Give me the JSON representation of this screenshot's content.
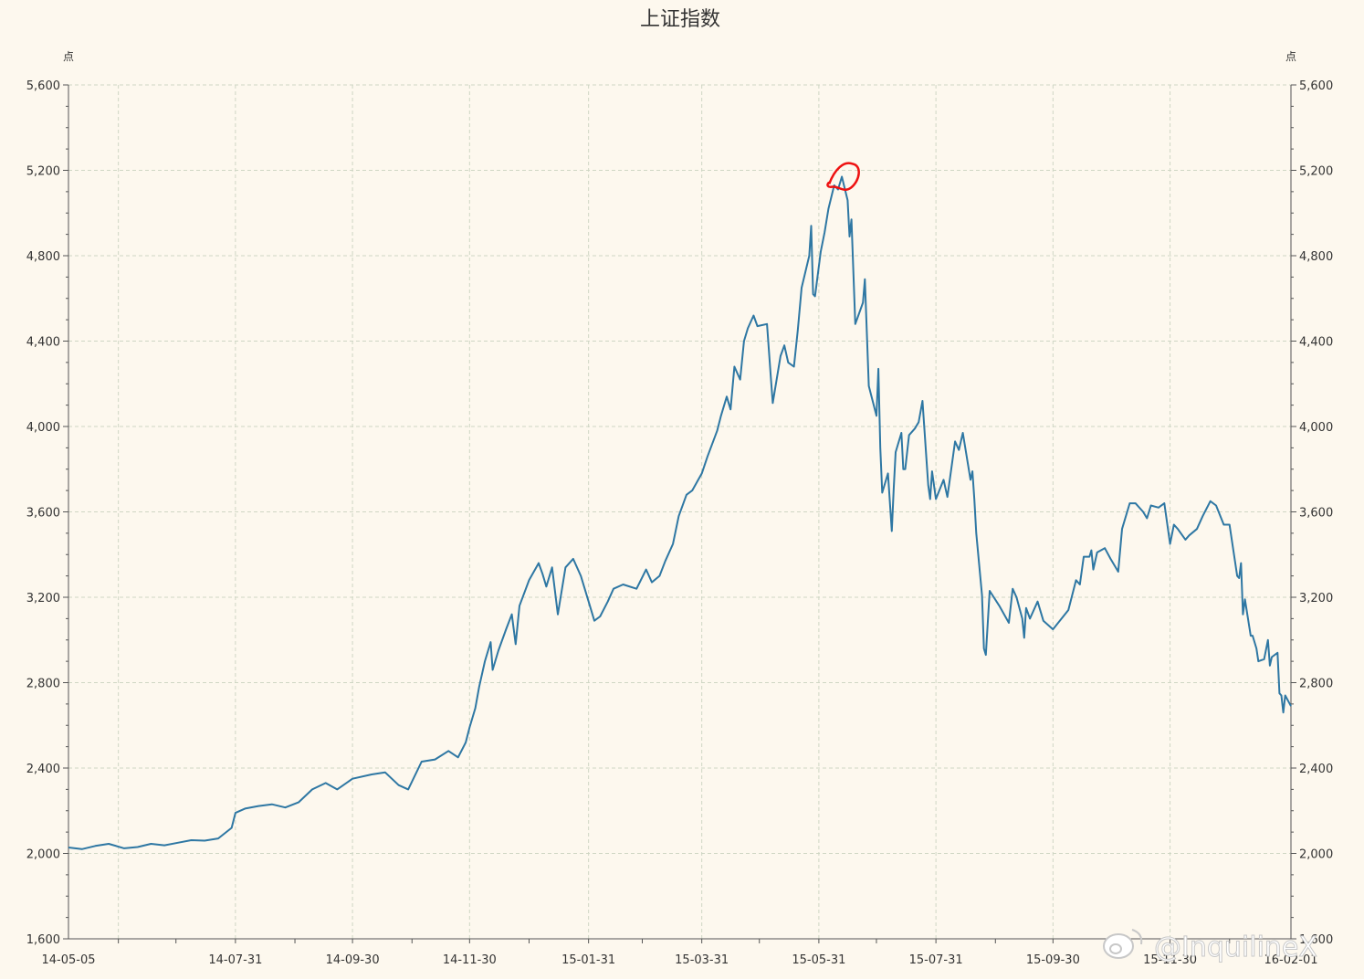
{
  "chart_data": {
    "type": "line",
    "title": "上证指数",
    "ylabel_left": "点",
    "ylabel_right": "点",
    "ylim": [
      1600,
      5600
    ],
    "yticks": [
      1600,
      2000,
      2400,
      2800,
      3200,
      3600,
      4000,
      4400,
      4800,
      5200,
      5600
    ],
    "ytick_labels": [
      "1,600",
      "2,000",
      "2,400",
      "2,800",
      "3,200",
      "3,600",
      "4,000",
      "4,400",
      "4,800",
      "5,200",
      "5,600"
    ],
    "xlim": [
      "2014-05-05",
      "2016-02-01"
    ],
    "xticks": [
      "2014-05-05",
      "2014-07-31",
      "2014-09-30",
      "2014-11-30",
      "2015-01-31",
      "2015-03-31",
      "2015-05-31",
      "2015-07-31",
      "2015-09-30",
      "2015-11-30",
      "2016-02-01"
    ],
    "xtick_labels": [
      "14-05-05",
      "14-07-31",
      "14-09-30",
      "14-11-30",
      "15-01-31",
      "15-03-31",
      "15-05-31",
      "15-07-31",
      "15-09-30",
      "15-11-30",
      "16-02-01"
    ],
    "grid": true,
    "series": [
      {
        "color": "#2e77a3",
        "points": [
          [
            "2014-05-05",
            2028
          ],
          [
            "2014-05-12",
            2020
          ],
          [
            "2014-05-19",
            2035
          ],
          [
            "2014-05-26",
            2045
          ],
          [
            "2014-06-03",
            2024
          ],
          [
            "2014-06-10",
            2030
          ],
          [
            "2014-06-17",
            2045
          ],
          [
            "2014-06-24",
            2038
          ],
          [
            "2014-07-01",
            2050
          ],
          [
            "2014-07-08",
            2062
          ],
          [
            "2014-07-15",
            2060
          ],
          [
            "2014-07-22",
            2070
          ],
          [
            "2014-07-29",
            2120
          ],
          [
            "2014-07-31",
            2190
          ],
          [
            "2014-08-05",
            2210
          ],
          [
            "2014-08-12",
            2222
          ],
          [
            "2014-08-19",
            2230
          ],
          [
            "2014-08-26",
            2215
          ],
          [
            "2014-09-02",
            2240
          ],
          [
            "2014-09-09",
            2300
          ],
          [
            "2014-09-16",
            2330
          ],
          [
            "2014-09-22",
            2300
          ],
          [
            "2014-09-30",
            2350
          ],
          [
            "2014-10-10",
            2370
          ],
          [
            "2014-10-17",
            2380
          ],
          [
            "2014-10-24",
            2320
          ],
          [
            "2014-10-29",
            2300
          ],
          [
            "2014-11-05",
            2430
          ],
          [
            "2014-11-12",
            2440
          ],
          [
            "2014-11-19",
            2480
          ],
          [
            "2014-11-24",
            2450
          ],
          [
            "2014-11-28",
            2520
          ],
          [
            "2014-11-30",
            2590
          ],
          [
            "2014-12-03",
            2680
          ],
          [
            "2014-12-05",
            2780
          ],
          [
            "2014-12-08",
            2900
          ],
          [
            "2014-12-11",
            2990
          ],
          [
            "2014-12-12",
            2860
          ],
          [
            "2014-12-15",
            2950
          ],
          [
            "2014-12-19",
            3050
          ],
          [
            "2014-12-22",
            3120
          ],
          [
            "2014-12-24",
            2980
          ],
          [
            "2014-12-26",
            3160
          ],
          [
            "2014-12-31",
            3280
          ],
          [
            "2015-01-05",
            3360
          ],
          [
            "2015-01-07",
            3310
          ],
          [
            "2015-01-09",
            3250
          ],
          [
            "2015-01-12",
            3340
          ],
          [
            "2015-01-15",
            3120
          ],
          [
            "2015-01-19",
            3340
          ],
          [
            "2015-01-23",
            3380
          ],
          [
            "2015-01-27",
            3300
          ],
          [
            "2015-01-31",
            3180
          ],
          [
            "2015-02-03",
            3090
          ],
          [
            "2015-02-06",
            3110
          ],
          [
            "2015-02-10",
            3180
          ],
          [
            "2015-02-13",
            3240
          ],
          [
            "2015-02-18",
            3260
          ],
          [
            "2015-02-25",
            3240
          ],
          [
            "2015-03-02",
            3330
          ],
          [
            "2015-03-05",
            3270
          ],
          [
            "2015-03-09",
            3300
          ],
          [
            "2015-03-12",
            3370
          ],
          [
            "2015-03-16",
            3450
          ],
          [
            "2015-03-19",
            3580
          ],
          [
            "2015-03-23",
            3680
          ],
          [
            "2015-03-26",
            3700
          ],
          [
            "2015-03-31",
            3780
          ],
          [
            "2015-04-03",
            3860
          ],
          [
            "2015-04-08",
            3980
          ],
          [
            "2015-04-10",
            4050
          ],
          [
            "2015-04-13",
            4140
          ],
          [
            "2015-04-15",
            4080
          ],
          [
            "2015-04-17",
            4280
          ],
          [
            "2015-04-20",
            4220
          ],
          [
            "2015-04-22",
            4400
          ],
          [
            "2015-04-24",
            4460
          ],
          [
            "2015-04-27",
            4520
          ],
          [
            "2015-04-29",
            4470
          ],
          [
            "2015-05-04",
            4480
          ],
          [
            "2015-05-06",
            4230
          ],
          [
            "2015-05-07",
            4110
          ],
          [
            "2015-05-11",
            4330
          ],
          [
            "2015-05-13",
            4380
          ],
          [
            "2015-05-15",
            4300
          ],
          [
            "2015-05-18",
            4280
          ],
          [
            "2015-05-20",
            4450
          ],
          [
            "2015-05-22",
            4650
          ],
          [
            "2015-05-26",
            4800
          ],
          [
            "2015-05-27",
            4940
          ],
          [
            "2015-05-28",
            4620
          ],
          [
            "2015-05-29",
            4610
          ],
          [
            "2015-06-01",
            4820
          ],
          [
            "2015-06-03",
            4910
          ],
          [
            "2015-06-05",
            5020
          ],
          [
            "2015-06-08",
            5130
          ],
          [
            "2015-06-10",
            5110
          ],
          [
            "2015-06-12",
            5170
          ],
          [
            "2015-06-15",
            5060
          ],
          [
            "2015-06-16",
            4890
          ],
          [
            "2015-06-17",
            4970
          ],
          [
            "2015-06-19",
            4480
          ],
          [
            "2015-06-23",
            4580
          ],
          [
            "2015-06-24",
            4690
          ],
          [
            "2015-06-26",
            4190
          ],
          [
            "2015-06-30",
            4050
          ],
          [
            "2015-07-01",
            4270
          ],
          [
            "2015-07-02",
            3900
          ],
          [
            "2015-07-03",
            3690
          ],
          [
            "2015-07-06",
            3780
          ],
          [
            "2015-07-08",
            3510
          ],
          [
            "2015-07-09",
            3710
          ],
          [
            "2015-07-10",
            3880
          ],
          [
            "2015-07-13",
            3970
          ],
          [
            "2015-07-14",
            3800
          ],
          [
            "2015-07-15",
            3800
          ],
          [
            "2015-07-17",
            3960
          ],
          [
            "2015-07-20",
            3990
          ],
          [
            "2015-07-22",
            4020
          ],
          [
            "2015-07-24",
            4120
          ],
          [
            "2015-07-27",
            3725
          ],
          [
            "2015-07-28",
            3660
          ],
          [
            "2015-07-29",
            3790
          ],
          [
            "2015-07-31",
            3660
          ],
          [
            "2015-08-04",
            3750
          ],
          [
            "2015-08-06",
            3670
          ],
          [
            "2015-08-10",
            3930
          ],
          [
            "2015-08-12",
            3890
          ],
          [
            "2015-08-14",
            3970
          ],
          [
            "2015-08-18",
            3750
          ],
          [
            "2015-08-19",
            3790
          ],
          [
            "2015-08-20",
            3660
          ],
          [
            "2015-08-21",
            3500
          ],
          [
            "2015-08-24",
            3210
          ],
          [
            "2015-08-25",
            2960
          ],
          [
            "2015-08-26",
            2930
          ],
          [
            "2015-08-28",
            3230
          ],
          [
            "2015-09-02",
            3160
          ],
          [
            "2015-09-07",
            3080
          ],
          [
            "2015-09-09",
            3240
          ],
          [
            "2015-09-11",
            3200
          ],
          [
            "2015-09-14",
            3100
          ],
          [
            "2015-09-15",
            3010
          ],
          [
            "2015-09-16",
            3150
          ],
          [
            "2015-09-18",
            3100
          ],
          [
            "2015-09-22",
            3180
          ],
          [
            "2015-09-25",
            3090
          ],
          [
            "2015-09-30",
            3050
          ],
          [
            "2015-10-08",
            3140
          ],
          [
            "2015-10-12",
            3280
          ],
          [
            "2015-10-14",
            3260
          ],
          [
            "2015-10-16",
            3390
          ],
          [
            "2015-10-19",
            3390
          ],
          [
            "2015-10-20",
            3420
          ],
          [
            "2015-10-21",
            3330
          ],
          [
            "2015-10-23",
            3410
          ],
          [
            "2015-10-27",
            3430
          ],
          [
            "2015-10-30",
            3380
          ],
          [
            "2015-11-03",
            3320
          ],
          [
            "2015-11-05",
            3520
          ],
          [
            "2015-11-09",
            3640
          ],
          [
            "2015-11-12",
            3640
          ],
          [
            "2015-11-16",
            3600
          ],
          [
            "2015-11-18",
            3570
          ],
          [
            "2015-11-20",
            3630
          ],
          [
            "2015-11-24",
            3620
          ],
          [
            "2015-11-27",
            3640
          ],
          [
            "2015-11-30",
            3450
          ],
          [
            "2015-12-02",
            3540
          ],
          [
            "2015-12-04",
            3520
          ],
          [
            "2015-12-08",
            3470
          ],
          [
            "2015-12-10",
            3490
          ],
          [
            "2015-12-14",
            3520
          ],
          [
            "2015-12-17",
            3580
          ],
          [
            "2015-12-21",
            3650
          ],
          [
            "2015-12-24",
            3630
          ],
          [
            "2015-12-28",
            3540
          ],
          [
            "2015-12-31",
            3540
          ],
          [
            "2016-01-04",
            3300
          ],
          [
            "2016-01-05",
            3290
          ],
          [
            "2016-01-06",
            3360
          ],
          [
            "2016-01-07",
            3120
          ],
          [
            "2016-01-08",
            3190
          ],
          [
            "2016-01-11",
            3020
          ],
          [
            "2016-01-12",
            3020
          ],
          [
            "2016-01-14",
            2960
          ],
          [
            "2016-01-15",
            2900
          ],
          [
            "2016-01-18",
            2910
          ],
          [
            "2016-01-20",
            3000
          ],
          [
            "2016-01-21",
            2880
          ],
          [
            "2016-01-22",
            2920
          ],
          [
            "2016-01-25",
            2940
          ],
          [
            "2016-01-26",
            2750
          ],
          [
            "2016-01-27",
            2740
          ],
          [
            "2016-01-28",
            2660
          ],
          [
            "2016-01-29",
            2740
          ],
          [
            "2016-02-01",
            2690
          ]
        ]
      }
    ]
  },
  "watermark": "@InquilineX",
  "colors": {
    "background": "#fdf8ee",
    "line": "#2e77a3",
    "highlight": "#ee1111",
    "grid": "#cfd6c4"
  }
}
